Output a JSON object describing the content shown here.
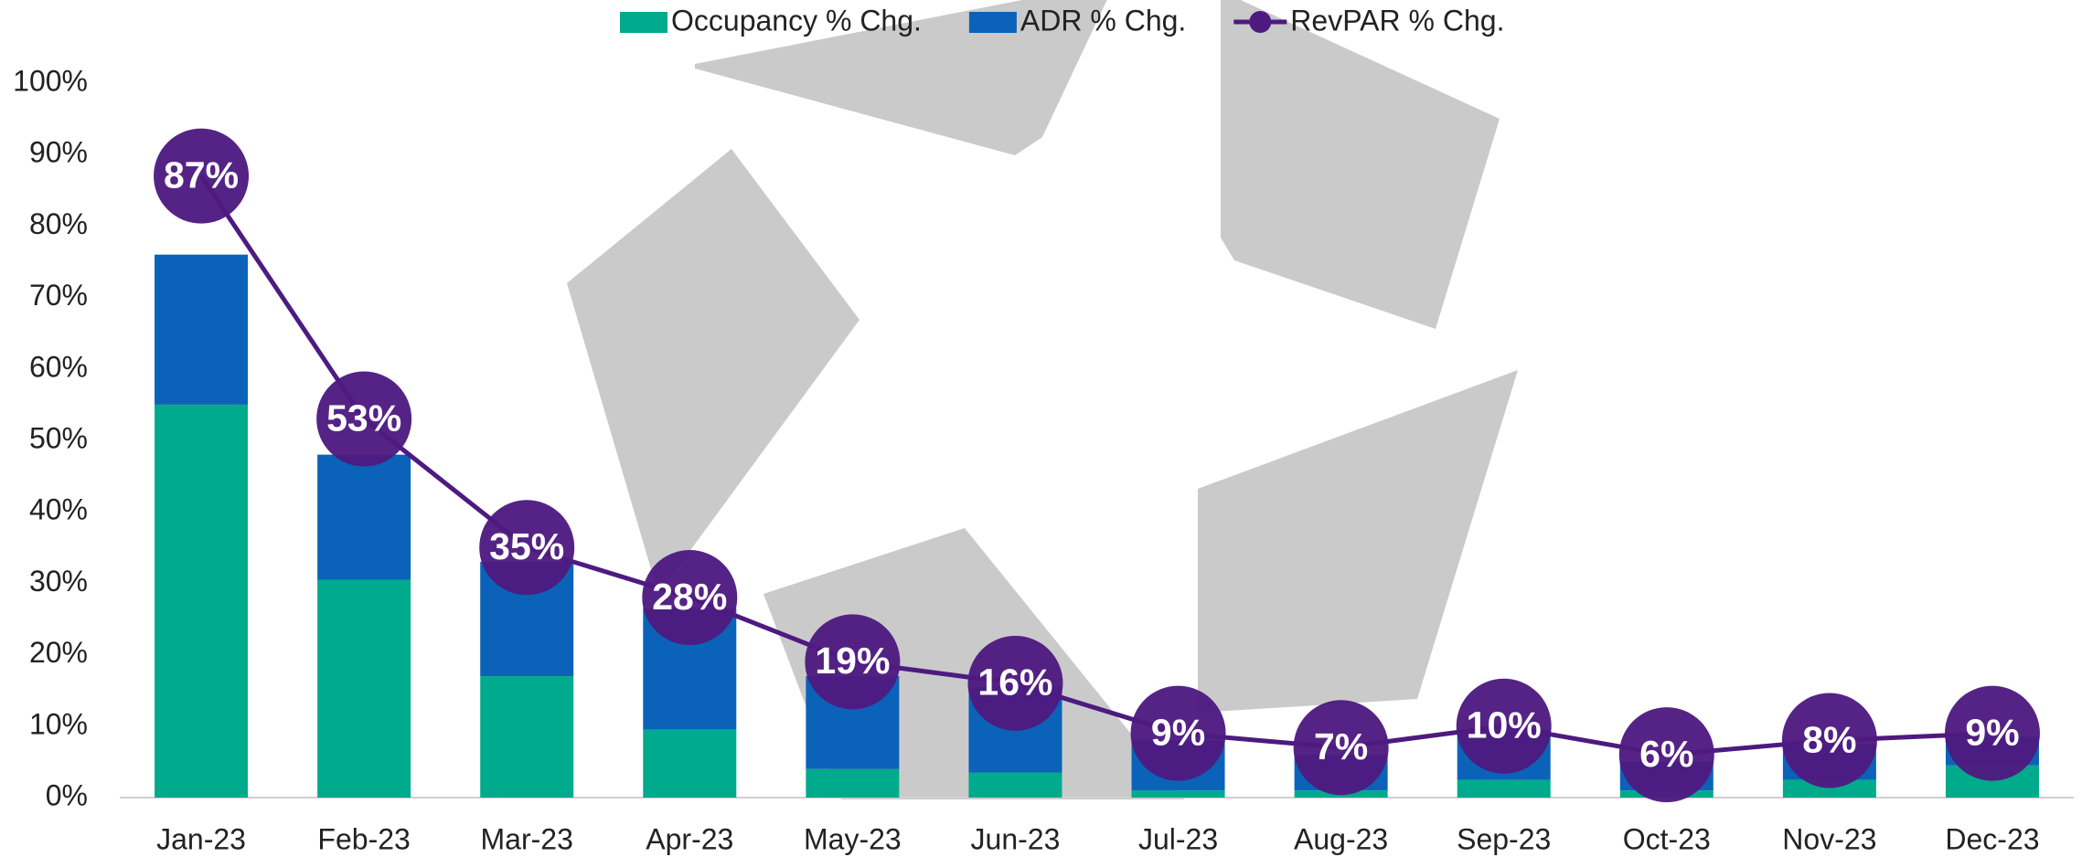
{
  "chart_data": {
    "type": "bar-line",
    "categories": [
      "Jan-23",
      "Feb-23",
      "Mar-23",
      "Apr-23",
      "May-23",
      "Jun-23",
      "Jul-23",
      "Aug-23",
      "Sep-23",
      "Oct-23",
      "Nov-23",
      "Dec-23"
    ],
    "series": [
      {
        "name": "Occupancy % Chg.",
        "type": "bar",
        "color": "#00aa8d",
        "values": [
          55,
          30.5,
          17,
          9.5,
          4,
          3.5,
          1,
          1,
          2.5,
          1,
          2.5,
          4.5
        ]
      },
      {
        "name": "ADR % Chg.",
        "type": "bar",
        "color": "#0a63b8",
        "values": [
          21,
          17.5,
          16,
          17,
          13,
          12,
          7,
          5,
          7,
          4,
          5,
          4
        ]
      },
      {
        "name": "RevPAR % Chg.",
        "type": "line",
        "color": "#4e1a80",
        "values": [
          87,
          53,
          35,
          28,
          19,
          16,
          9,
          7,
          10,
          6,
          8,
          9
        ],
        "value_labels": [
          "87%",
          "53%",
          "35%",
          "28%",
          "19%",
          "16%",
          "9%",
          "7%",
          "10%",
          "6%",
          "8%",
          "9%"
        ]
      }
    ],
    "stacked": true,
    "ylim": [
      0,
      100
    ],
    "yticks": [
      {
        "value": 0,
        "label": "0%"
      },
      {
        "value": 10,
        "label": "10%"
      },
      {
        "value": 20,
        "label": "20%"
      },
      {
        "value": 30,
        "label": "30%"
      },
      {
        "value": 40,
        "label": "40%"
      },
      {
        "value": 50,
        "label": "50%"
      },
      {
        "value": 60,
        "label": "60%"
      },
      {
        "value": 70,
        "label": "70%"
      },
      {
        "value": 80,
        "label": "80%"
      },
      {
        "value": 90,
        "label": "90%"
      },
      {
        "value": 100,
        "label": "100%"
      }
    ],
    "grid": false,
    "legend": "top"
  }
}
